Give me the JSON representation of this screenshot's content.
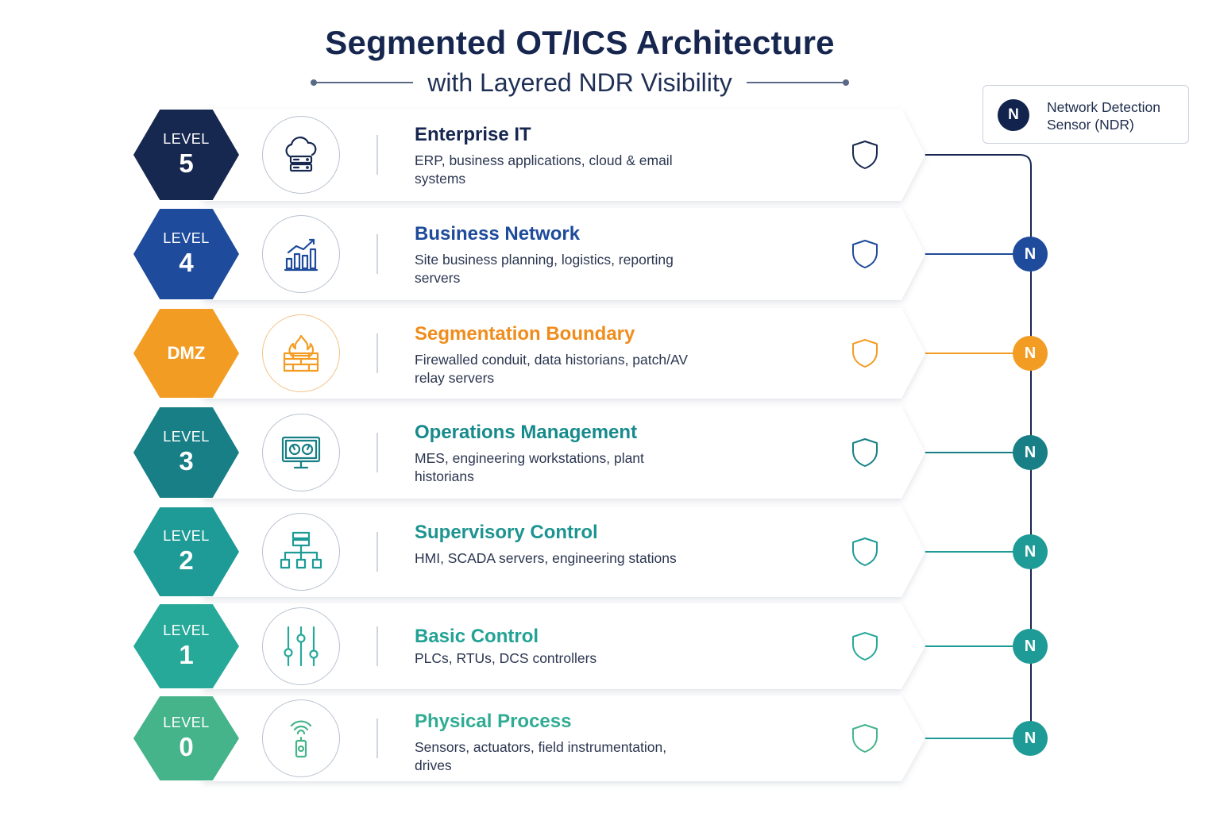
{
  "header": {
    "title": "Segmented OT/ICS Architecture",
    "subtitle": "with Layered NDR Visibility"
  },
  "legend": {
    "badge": "N",
    "label": "Network Detection Sensor (NDR)"
  },
  "colors": {
    "navy": "#16284f",
    "blue": "#1e4b9b",
    "orange": "#f39c23",
    "teal_dark": "#177f85",
    "teal": "#1e9b96",
    "teal_light": "#27a99a",
    "green": "#46b48a"
  },
  "levels": [
    {
      "id": "level-5",
      "hex_label": "LEVEL",
      "hex_value": "5",
      "title": "Enterprise IT",
      "description": "ERP, business applications, cloud & email systems",
      "icon": "cloud-server-icon",
      "color": "#16284f",
      "title_color": "#16264f",
      "sensor": "",
      "sensor_color": "#16284f"
    },
    {
      "id": "level-4",
      "hex_label": "LEVEL",
      "hex_value": "4",
      "title": "Business Network",
      "description": "Site business planning, logistics, reporting servers",
      "icon": "bar-chart-icon",
      "color": "#1e4b9b",
      "title_color": "#1e4b9b",
      "sensor": "N",
      "sensor_color": "#1e4b9b"
    },
    {
      "id": "dmz",
      "hex_label": "",
      "hex_value": "DMZ",
      "title": "Segmentation Boundary",
      "description": "Firewalled conduit, data historians, patch/AV relay servers",
      "icon": "firewall-icon",
      "color": "#f39c23",
      "title_color": "#f08c1c",
      "sensor": "N",
      "sensor_color": "#f39c23"
    },
    {
      "id": "level-3",
      "hex_label": "LEVEL",
      "hex_value": "3",
      "title": "Operations Management",
      "description": "MES, engineering workstations, plant historians",
      "icon": "monitor-gauges-icon",
      "color": "#177f85",
      "title_color": "#168a8c",
      "sensor": "N",
      "sensor_color": "#177f85"
    },
    {
      "id": "level-2",
      "hex_label": "LEVEL",
      "hex_value": "2",
      "title": "Supervisory Control",
      "description": "HMI, SCADA servers, engineering stations",
      "icon": "hierarchy-icon",
      "color": "#1e9b96",
      "title_color": "#1d9490",
      "sensor": "N",
      "sensor_color": "#1e9b96"
    },
    {
      "id": "level-1",
      "hex_label": "LEVEL",
      "hex_value": "1",
      "title": "Basic Control",
      "description": "PLCs, RTUs, DCS controllers",
      "icon": "sliders-icon",
      "color": "#27a99a",
      "title_color": "#22a295",
      "sensor": "N",
      "sensor_color": "#1e9b96"
    },
    {
      "id": "level-0",
      "hex_label": "LEVEL",
      "hex_value": "0",
      "title": "Physical Process",
      "description": "Sensors, actuators, field instrumentation, drives",
      "icon": "wireless-sensor-icon",
      "color": "#46b48a",
      "title_color": "#2fac93",
      "sensor": "N",
      "sensor_color": "#1e9b96"
    }
  ]
}
